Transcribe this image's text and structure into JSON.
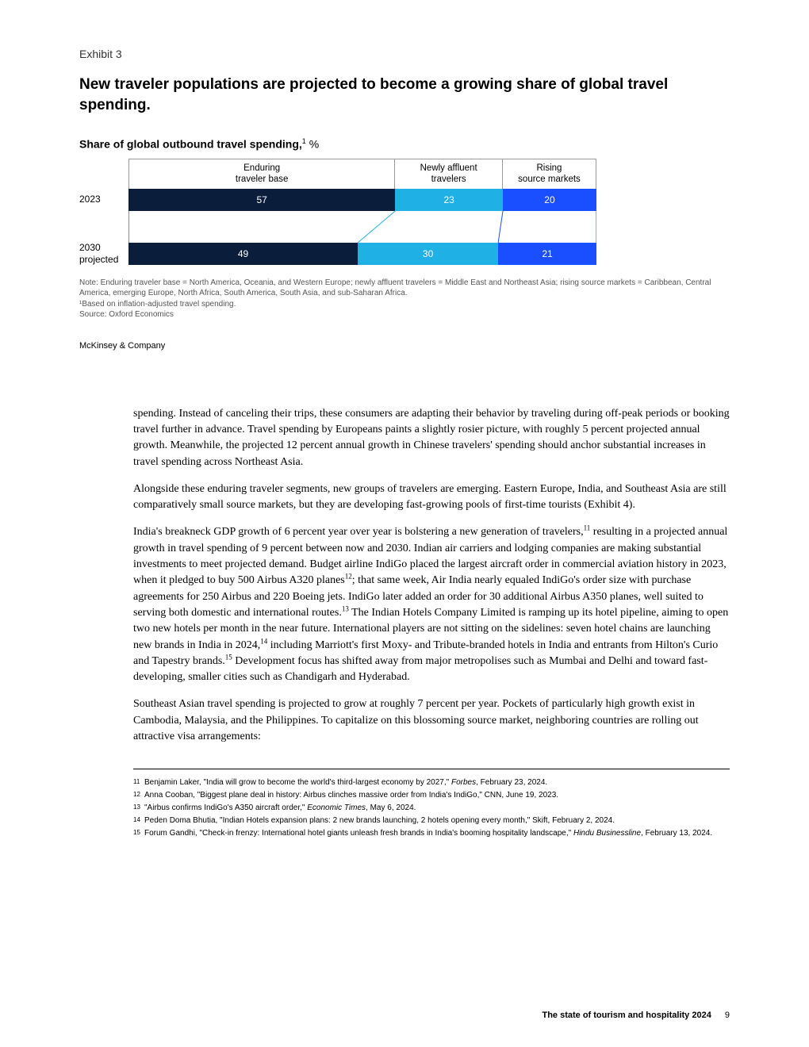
{
  "exhibit": {
    "label": "Exhibit 3",
    "title": "New traveler populations are projected to become a growing share of global travel spending.",
    "subtitle_bold": "Share of global outbound travel spending,",
    "subtitle_sup": "1",
    "subtitle_pct": " %",
    "attribution": "McKinsey & Company"
  },
  "chart": {
    "type": "stacked-bar",
    "segments": [
      {
        "header": "Enduring\ntraveler base",
        "color": "#0a1e3c"
      },
      {
        "header": "Newly affluent\ntravelers",
        "color": "#1fb1e6"
      },
      {
        "header": "Rising\nsource markets",
        "color": "#1a4fff"
      }
    ],
    "rows": [
      {
        "label": "2023",
        "values": [
          57,
          23,
          20
        ]
      },
      {
        "label": "2030\nprojected",
        "values": [
          49,
          30,
          21
        ]
      }
    ],
    "connector_strokes": [
      "#0a1e3c",
      "#1fb1e6",
      "#1a4fff",
      "#1a4fff"
    ],
    "note": "Note: Enduring traveler base = North America, Oceania, and Western Europe; newly affluent travelers = Middle East and Northeast Asia; rising source markets = Caribbean, Central America, emerging Europe, North Africa, South America, South Asia, and sub-Saharan Africa.",
    "note2": "¹Based on inflation-adjusted travel spending.",
    "source": "Source: Oxford Economics"
  },
  "body": {
    "p1": "spending. Instead of canceling their trips, these consumers are adapting their behavior by traveling during off-peak periods or booking travel further in advance. Travel spending by Europeans paints a slightly rosier picture, with roughly 5 percent projected annual growth. Meanwhile, the projected 12 percent annual growth in Chinese travelers' spending should anchor substantial increases in travel spending across Northeast Asia.",
    "p2": "Alongside these enduring traveler segments, new groups of travelers are emerging. Eastern Europe, India, and Southeast Asia are still comparatively small source markets, but they are developing fast-growing pools of first-time tourists (Exhibit 4).",
    "p3a": "India's breakneck GDP growth of 6 percent year over year is bolstering a new generation of travelers,",
    "p3s1": "11",
    "p3b": " resulting in a projected annual growth in travel spending of 9 percent between now and 2030. Indian air carriers and lodging companies are making substantial investments to meet projected demand. Budget airline IndiGo placed the largest aircraft order in commercial aviation history in 2023, when it pledged to buy 500 Airbus A320 planes",
    "p3s2": "12",
    "p3c": "; that same week, Air India nearly equaled IndiGo's order size with purchase agreements for 250 Airbus and 220 Boeing jets. IndiGo later added an order for 30 additional Airbus A350 planes, well suited to serving both domestic and international routes.",
    "p3s3": "13",
    "p3d": " The Indian Hotels Company Limited is ramping up its hotel pipeline, aiming to open two new hotels per month in the near future. International players are not sitting on the sidelines: seven hotel chains are launching new brands in India in 2024,",
    "p3s4": "14",
    "p3e": " including Marriott's first Moxy- and Tribute-branded hotels in India and entrants from Hilton's Curio and Tapestry brands.",
    "p3s5": "15",
    "p3f": " Development focus has shifted away from major metropolises such as Mumbai and Delhi and toward fast-developing, smaller cities such as Chandigarh and Hyderabad.",
    "p4": "Southeast Asian travel spending is projected to grow at roughly 7 percent per year. Pockets of particularly high growth exist in Cambodia, Malaysia, and the Philippines. To capitalize on this blossoming source market, neighboring countries are rolling out attractive visa arrangements:"
  },
  "footnotes": [
    {
      "num": "11",
      "text": "Benjamin Laker, \"India will grow to become the world's third-largest economy by 2027,\" Forbes, February 23, 2024.",
      "italic": "Forbes"
    },
    {
      "num": "12",
      "text": "Anna Cooban, \"Biggest plane deal in history: Airbus clinches massive order from India's IndiGo,\" CNN, June 19, 2023."
    },
    {
      "num": "13",
      "text": "\"Airbus confirms IndiGo's A350 aircraft order,\" Economic Times, May 6, 2024.",
      "italic": "Economic Times"
    },
    {
      "num": "14",
      "text": "Peden Doma Bhutia, \"Indian Hotels expansion plans: 2 new brands launching, 2 hotels opening every month,\" Skift, February 2, 2024."
    },
    {
      "num": "15",
      "text": "Forum Gandhi, \"Check-in frenzy: International hotel giants unleash fresh brands in India's booming hospitality landscape,\" Hindu Businessline, February 13, 2024.",
      "italic": "Hindu Businessline"
    }
  ],
  "footer": {
    "title": "The state of tourism and hospitality 2024",
    "page": "9"
  }
}
